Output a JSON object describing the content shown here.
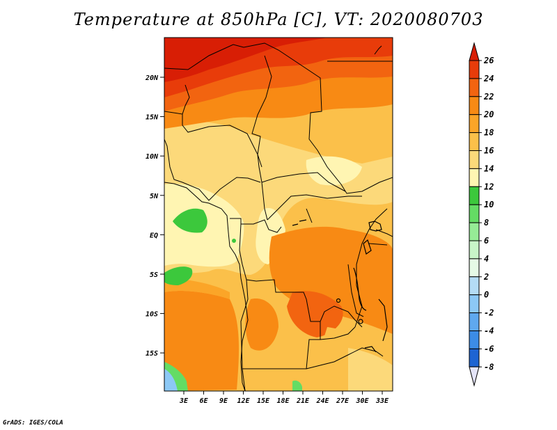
{
  "title": "Temperature at 850hPa [C], VT: 2020080703",
  "credit": "GrADS: IGES/COLA",
  "map": {
    "lat_labels": [
      "20N",
      "15N",
      "10N",
      "5N",
      "EQ",
      "5S",
      "10S",
      "15S"
    ],
    "lon_labels": [
      "3E",
      "6E",
      "9E",
      "12E",
      "15E",
      "18E",
      "21E",
      "24E",
      "27E",
      "30E",
      "33E"
    ]
  },
  "colorbar": {
    "levels": [
      "26",
      "24",
      "22",
      "20",
      "18",
      "16",
      "14",
      "12",
      "10",
      "8",
      "6",
      "4",
      "2",
      "0",
      "-2",
      "-4",
      "-6",
      "-8"
    ],
    "colors": [
      "#d81e05",
      "#e83c0a",
      "#f26410",
      "#f88a14",
      "#fba528",
      "#fbc04a",
      "#fcd97a",
      "#fff5b2",
      "#3cc83c",
      "#64dc64",
      "#96ec96",
      "#c8f5c8",
      "#e6fae6",
      "#b4dcf5",
      "#8cc8f5",
      "#5fa8ee",
      "#3c8ce6",
      "#1e64d2",
      "#0a46be",
      "#00289c",
      "#000a6e",
      "#e4e4f8"
    ]
  }
}
